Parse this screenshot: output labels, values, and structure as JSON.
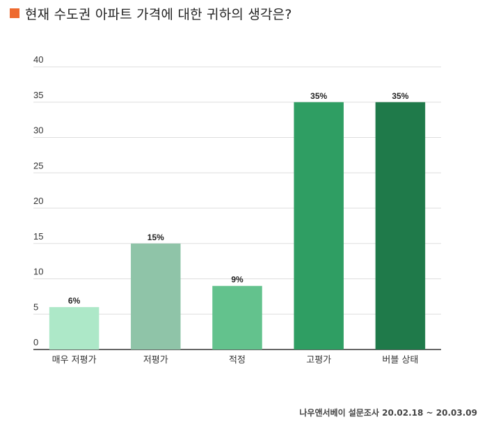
{
  "title": "현재 수도권 아파트 가격에 대한 귀하의 생각은?",
  "colors": {
    "title_marker": "#ee6a2f",
    "grid": "#dddddd",
    "axis": "#333333",
    "bars": [
      "#ade8c8",
      "#8fc4a8",
      "#63c28d",
      "#2f9e63",
      "#1f7a4a"
    ]
  },
  "source": {
    "name": "나우앤서베이 설문조사",
    "period": "20.02.18 ~ 20.03.09"
  },
  "chart_data": {
    "type": "bar",
    "title": "현재 수도권 아파트 가격에 대한 귀하의 생각은?",
    "categories": [
      "매우 저평가",
      "저평가",
      "적정",
      "고평가",
      "버블 상태"
    ],
    "values": [
      6,
      15,
      9,
      35,
      35
    ],
    "data_labels": [
      "6%",
      "15%",
      "9%",
      "35%",
      "35%"
    ],
    "ylim": [
      0,
      40
    ],
    "yticks": [
      0,
      5,
      10,
      15,
      20,
      25,
      30,
      35,
      40
    ],
    "grid": true,
    "legend": "none"
  }
}
